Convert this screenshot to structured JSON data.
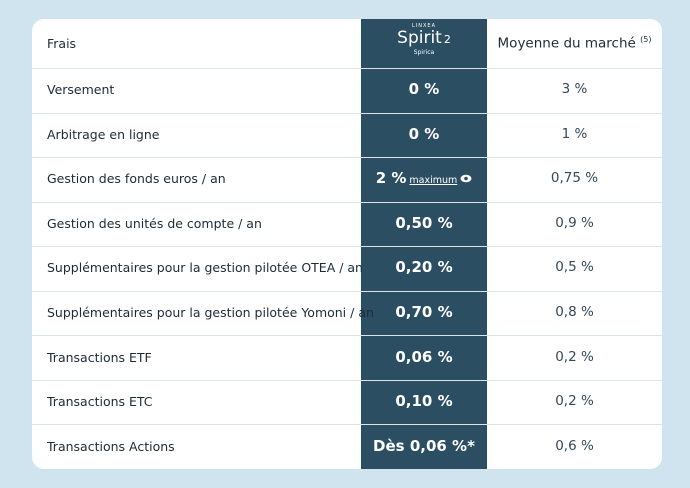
{
  "header": {
    "label": "Frais",
    "logo": {
      "brand": "LINXEA",
      "name": "Spirit",
      "version": "2",
      "insurer": "Spirica"
    },
    "market": "Moyenne du marché",
    "market_note": "(5)"
  },
  "rows": [
    {
      "label": "Versement",
      "spirit": "0 %",
      "market": "3 %"
    },
    {
      "label": "Arbitrage en ligne",
      "spirit": "0 %",
      "market": "1 %"
    },
    {
      "label": "Gestion des fonds euros / an",
      "spirit": "2 %",
      "spirit_note": "maximum",
      "market": "0,75 %"
    },
    {
      "label": "Gestion des unités de compte / an",
      "spirit": "0,50 %",
      "market": "0,9 %"
    },
    {
      "label": "Supplémentaires pour la gestion pilotée OTEA / an",
      "spirit": "0,20 %",
      "market": "0,5 %"
    },
    {
      "label": "Supplémentaires pour la gestion pilotée Yomoni / an",
      "spirit": "0,70 %",
      "market": "0,8 %"
    },
    {
      "label": "Transactions ETF",
      "spirit": "0,06 %",
      "market": "0,2 %"
    },
    {
      "label": "Transactions ETC",
      "spirit": "0,10 %",
      "market": "0,2 %"
    },
    {
      "label": "Transactions Actions",
      "spirit": "Dès 0,06 %*",
      "market": "0,6 %"
    }
  ]
}
